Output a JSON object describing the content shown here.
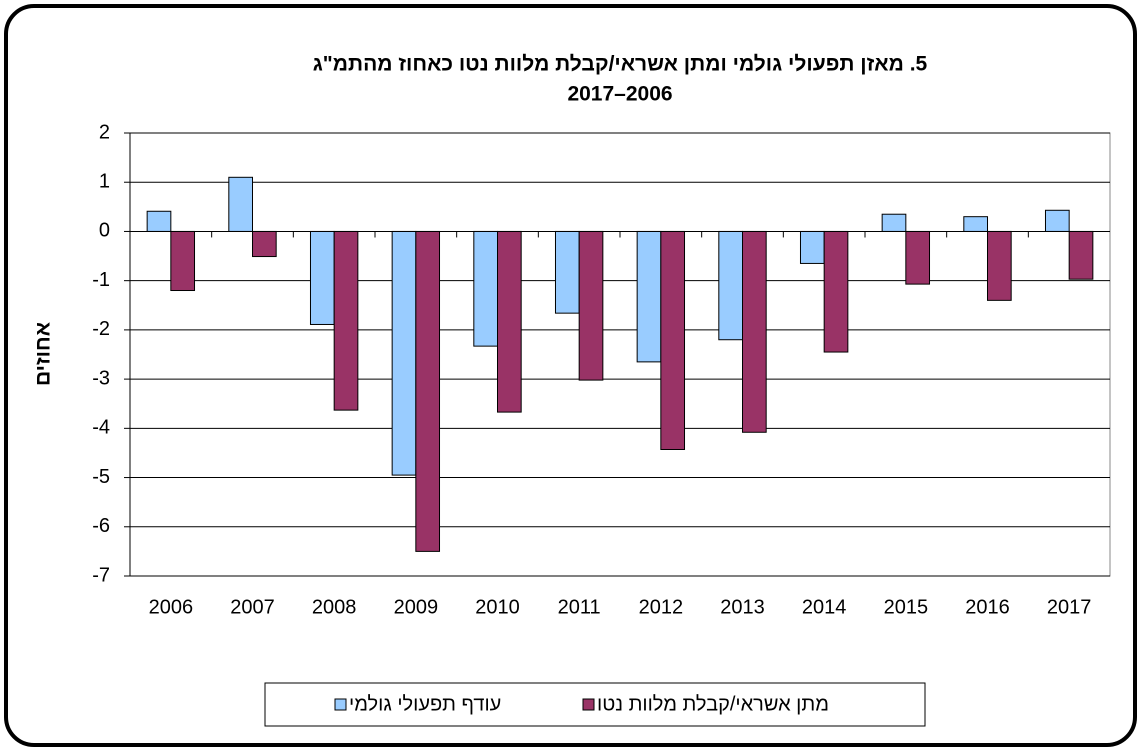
{
  "chart_data": {
    "type": "bar",
    "title": "5. מאזן תפעולי גולמי ומתן אשראי/קבלת מלוות נטו כאחוז מהתמ\"ג",
    "subtitle": "2017–2006",
    "y_label": "אחוזים",
    "categories": [
      "2006",
      "2007",
      "2008",
      "2009",
      "2010",
      "2011",
      "2012",
      "2013",
      "2014",
      "2015",
      "2016",
      "2017"
    ],
    "series": [
      {
        "name": "עודף תפעולי גולמי",
        "color": "#99ccff",
        "values": [
          0.41,
          1.1,
          -1.89,
          -4.95,
          -2.33,
          -1.66,
          -2.65,
          -2.2,
          -0.65,
          0.35,
          0.3,
          0.43
        ]
      },
      {
        "name": "מתן אשראי/קבלת מלוות נטו",
        "color": "#993366",
        "values": [
          -1.2,
          -0.51,
          -3.63,
          -6.5,
          -3.67,
          -3.02,
          -4.43,
          -4.08,
          -2.45,
          -1.07,
          -1.4,
          -0.97
        ]
      }
    ],
    "ylim": [
      -7,
      2
    ],
    "yticks": [
      -7,
      -6,
      -5,
      -4,
      -3,
      -2,
      -1,
      0,
      1,
      2
    ],
    "grid": true
  }
}
